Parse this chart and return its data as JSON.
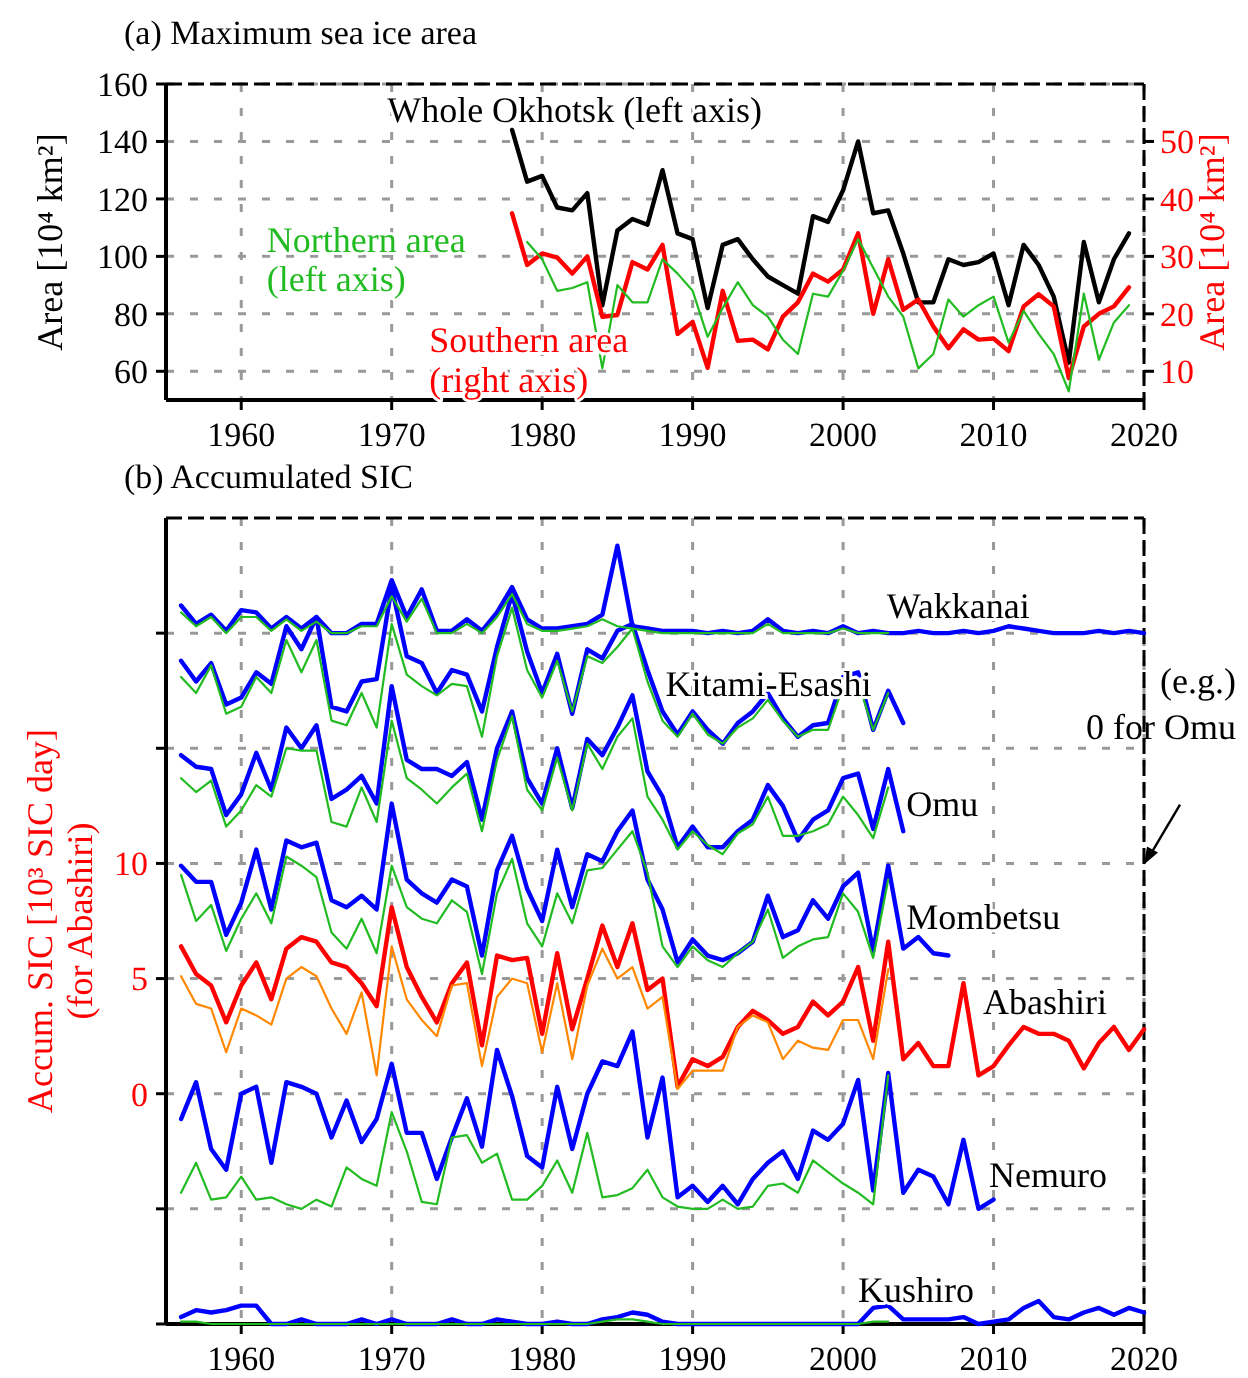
{
  "chart_data": [
    {
      "type": "line",
      "title": "(a) Maximum sea ice area",
      "ylabel": "Area [10⁴ km²]",
      "y2label": "Area [10⁴ km²]",
      "xlim": [
        1955,
        2020
      ],
      "xticks": [
        1960,
        1970,
        1980,
        1990,
        2000,
        2010,
        2020
      ],
      "ylim": [
        50,
        160
      ],
      "yticks": [
        60,
        80,
        100,
        120,
        140,
        160
      ],
      "y2lim": [
        5,
        60
      ],
      "y2ticks": [
        10,
        20,
        30,
        40,
        50
      ],
      "grid": true,
      "x": [
        1978,
        1979,
        1980,
        1981,
        1982,
        1983,
        1984,
        1985,
        1986,
        1987,
        1988,
        1989,
        1990,
        1991,
        1992,
        1993,
        1994,
        1995,
        1996,
        1997,
        1998,
        1999,
        2000,
        2001,
        2002,
        2003,
        2004,
        2005,
        2006,
        2007,
        2008,
        2009,
        2010,
        2011,
        2012,
        2013,
        2014,
        2015,
        2016,
        2017,
        2018,
        2019
      ],
      "series": [
        {
          "name": "Whole Okhotsk (left axis)",
          "color": "#000000",
          "values": [
            144,
            126,
            128,
            117,
            116,
            122,
            83,
            109,
            113,
            111,
            130,
            108,
            106,
            82,
            104,
            106,
            99,
            93,
            90,
            87,
            114,
            112,
            123,
            140,
            115,
            116,
            101,
            84,
            84,
            99,
            97,
            98,
            101,
            83,
            104,
            97,
            86,
            63,
            105,
            84,
            99,
            108
          ]
        },
        {
          "name": "Northern area (left axis)",
          "color": "#22bb22",
          "values": [
            null,
            105,
            99,
            88,
            89,
            91,
            61,
            90,
            84,
            84,
            99,
            94,
            88,
            72,
            82,
            91,
            83,
            79,
            71,
            66,
            87,
            86,
            95,
            106,
            96,
            86,
            79,
            61,
            66,
            85,
            79,
            83,
            86,
            70,
            81,
            73,
            66,
            53,
            87,
            64,
            77,
            83
          ]
        },
        {
          "name": "Southern area (right axis)",
          "color": "#ff0000",
          "axis": "y2",
          "values": [
            37.5,
            28.5,
            30.5,
            29.8,
            27,
            30,
            19.5,
            19.8,
            29,
            27.7,
            32,
            16.5,
            18.6,
            10.6,
            24,
            15.3,
            15.5,
            13.8,
            19.5,
            22,
            27,
            25.6,
            27.7,
            34,
            20,
            29.5,
            20.7,
            22.5,
            17.8,
            14,
            17.3,
            15.5,
            15.7,
            13.5,
            21.3,
            23.4,
            21.3,
            8.8,
            17.8,
            20,
            21.3,
            24.6
          ]
        }
      ]
    },
    {
      "type": "line",
      "title": "(b) Accumulated SIC",
      "ylabel": "Accum. SIC [10³ SIC day] (for Abashiri)",
      "xlim": [
        1955,
        2020
      ],
      "xticks": [
        1960,
        1970,
        1980,
        1990,
        2000,
        2010,
        2020
      ],
      "ylim": [
        -10,
        25
      ],
      "yticks": [
        {
          "value": -10,
          "label": null
        },
        {
          "value": -5,
          "label": null
        },
        0,
        5,
        10,
        {
          "value": 15,
          "label": null
        },
        {
          "value": 20,
          "label": null
        }
      ],
      "grid": true,
      "annotations": [
        "(e.g.) 0 for Omu"
      ],
      "x": [
        1956,
        1957,
        1958,
        1959,
        1960,
        1961,
        1962,
        1963,
        1964,
        1965,
        1966,
        1967,
        1968,
        1969,
        1970,
        1971,
        1972,
        1973,
        1974,
        1975,
        1976,
        1977,
        1978,
        1979,
        1980,
        1981,
        1982,
        1983,
        1984,
        1985,
        1986,
        1987,
        1988,
        1989,
        1990,
        1991,
        1992,
        1993,
        1994,
        1995,
        1996,
        1997,
        1998,
        1999,
        2000,
        2001,
        2002,
        2003,
        2004,
        2005,
        2006,
        2007,
        2008,
        2009,
        2010,
        2011,
        2012,
        2013,
        2014,
        2015,
        2016,
        2017,
        2018,
        2019,
        2020
      ],
      "series": [
        {
          "name": "Wakkanai",
          "color": "#0000ff",
          "values": [
            21.2,
            20.4,
            20.8,
            20.1,
            21.0,
            20.9,
            20.2,
            20.7,
            20.2,
            20.7,
            20.0,
            20.0,
            20.4,
            20.4,
            22.3,
            20.7,
            21.9,
            20.1,
            20.1,
            20.6,
            20.1,
            20.9,
            22.0,
            20.6,
            20.2,
            20.2,
            20.3,
            20.4,
            20.8,
            23.8,
            20.3,
            20.2,
            20.1,
            20.1,
            20.1,
            20.0,
            20.1,
            20.0,
            20.1,
            20.6,
            20.1,
            20.0,
            20.1,
            20.0,
            20.3,
            20.0,
            20.1,
            20.0,
            20.0,
            20.1,
            20.0,
            20.0,
            20.1,
            20.0,
            20.1,
            20.3,
            20.2,
            20.1,
            20.0,
            20.0,
            20.0,
            20.1,
            20.0,
            20.1,
            20.0
          ]
        },
        {
          "color": "#22bb22",
          "values": [
            20.9,
            20.3,
            20.7,
            20.0,
            20.7,
            20.7,
            20.1,
            20.6,
            20.1,
            20.5,
            20.0,
            20.0,
            20.3,
            20.3,
            21.6,
            20.5,
            21.5,
            20.0,
            20.0,
            20.4,
            20.0,
            20.7,
            21.7,
            20.4,
            20.1,
            20.1,
            20.2,
            20.3,
            20.6,
            20.3,
            20.2,
            20.1,
            20.0,
            20.0,
            20.0,
            20.0,
            20.0,
            20.0,
            20.0,
            20.4,
            20.0,
            20.0,
            20.0,
            20.0,
            20.2,
            20.0,
            20.0,
            20.0,
            null,
            null,
            null,
            null,
            null,
            null,
            null,
            null,
            null,
            null,
            null,
            null,
            null,
            null,
            null,
            null,
            null
          ]
        },
        {
          "name": "Kitami-Esashi",
          "color": "#0000ff",
          "values": [
            18.8,
            17.9,
            18.7,
            16.9,
            17.2,
            18.3,
            17.8,
            20.3,
            19.3,
            20.7,
            16.8,
            16.6,
            17.9,
            18.0,
            22.0,
            19.0,
            18.7,
            17.4,
            18.4,
            18.2,
            16.6,
            19.4,
            21.7,
            19.2,
            17.4,
            19.1,
            16.5,
            19.3,
            18.9,
            20.1,
            20.4,
            18.4,
            16.6,
            15.6,
            16.6,
            15.8,
            15.2,
            16.1,
            16.6,
            17.4,
            16.3,
            15.5,
            16.0,
            16.1,
            18.1,
            18.3,
            15.8,
            17.5,
            16.1,
            null,
            null,
            null,
            null,
            null,
            null,
            null,
            null,
            null,
            null,
            null,
            null,
            null,
            null,
            null,
            null
          ]
        },
        {
          "color": "#22bb22",
          "values": [
            18.1,
            17.4,
            18.6,
            16.5,
            16.8,
            18.1,
            17.4,
            19.7,
            18.3,
            19.7,
            16.2,
            16.0,
            17.4,
            15.9,
            20.4,
            18.2,
            17.7,
            17.3,
            17.8,
            17.7,
            15.5,
            19.0,
            21.1,
            18.4,
            17.2,
            18.8,
            16.6,
            19.0,
            18.7,
            19.4,
            20.2,
            17.9,
            16.2,
            15.5,
            16.5,
            15.6,
            15.2,
            15.9,
            16.3,
            17.1,
            16.2,
            15.5,
            15.8,
            15.8,
            17.7,
            17.9,
            15.8,
            17.4,
            null,
            null,
            null,
            null,
            null,
            null,
            null,
            null,
            null,
            null,
            null,
            null,
            null,
            null,
            null,
            null,
            null
          ]
        },
        {
          "name": "Omu",
          "color": "#0000ff",
          "values": [
            14.7,
            14.2,
            14.1,
            12.1,
            13.0,
            14.8,
            13.2,
            15.9,
            15.0,
            16.0,
            12.8,
            13.2,
            13.8,
            12.6,
            17.7,
            14.5,
            14.1,
            14.1,
            13.8,
            14.4,
            11.9,
            15.0,
            16.6,
            13.7,
            12.6,
            15.0,
            12.4,
            15.4,
            14.7,
            15.9,
            17.3,
            14.0,
            12.9,
            10.7,
            11.6,
            10.7,
            10.7,
            11.4,
            11.9,
            13.4,
            12.5,
            11.0,
            11.9,
            12.3,
            13.7,
            13.9,
            11.5,
            14.1,
            11.4,
            null,
            null,
            null,
            null,
            null,
            null,
            null,
            null,
            null,
            null,
            null,
            null,
            null,
            null,
            null,
            null
          ]
        },
        {
          "color": "#22bb22",
          "values": [
            13.7,
            13.1,
            13.6,
            11.6,
            12.3,
            13.4,
            12.9,
            15.0,
            14.9,
            14.9,
            11.8,
            11.6,
            13.3,
            11.8,
            16.2,
            13.7,
            13.2,
            12.6,
            13.3,
            13.9,
            11.4,
            14.5,
            16.4,
            13.2,
            12.3,
            14.6,
            12.3,
            15.2,
            14.1,
            15.5,
            16.3,
            12.9,
            11.9,
            10.6,
            11.4,
            10.8,
            10.4,
            11.3,
            11.7,
            12.9,
            11.2,
            11.2,
            11.4,
            11.7,
            12.9,
            12.1,
            11.1,
            13.3,
            null,
            null,
            null,
            null,
            null,
            null,
            null,
            null,
            null,
            null,
            null,
            null,
            null,
            null,
            null,
            null,
            null
          ]
        },
        {
          "name": "Mombetsu",
          "color": "#0000ff",
          "values": [
            9.9,
            9.2,
            9.2,
            6.9,
            8.3,
            10.6,
            8.0,
            11.0,
            10.7,
            10.9,
            8.4,
            8.1,
            8.6,
            8.0,
            12.6,
            9.3,
            8.7,
            8.3,
            9.3,
            9.0,
            6.0,
            9.7,
            11.2,
            8.9,
            7.5,
            10.6,
            8.1,
            10.4,
            10.1,
            11.4,
            12.3,
            9.3,
            8.0,
            5.7,
            6.7,
            6.0,
            5.8,
            6.1,
            6.6,
            8.6,
            6.8,
            7.1,
            8.4,
            7.6,
            9.0,
            9.6,
            6.2,
            9.9,
            6.3,
            6.8,
            6.1,
            6.0,
            null,
            null,
            null,
            null,
            null,
            null,
            null,
            null,
            null,
            null,
            null,
            null,
            null
          ]
        },
        {
          "color": "#22bb22",
          "values": [
            9.5,
            7.5,
            8.2,
            6.2,
            7.6,
            8.7,
            7.4,
            10.3,
            9.9,
            9.4,
            7.0,
            6.3,
            7.6,
            6.1,
            9.9,
            8.1,
            7.6,
            7.4,
            8.4,
            7.9,
            5.2,
            8.7,
            10.2,
            7.4,
            6.4,
            8.7,
            7.4,
            9.7,
            9.8,
            10.6,
            11.4,
            9.6,
            6.4,
            5.5,
            6.4,
            5.8,
            5.5,
            6.1,
            6.6,
            8.0,
            5.9,
            6.4,
            6.7,
            6.8,
            8.7,
            7.9,
            5.9,
            9.3,
            null,
            null,
            null,
            null,
            null,
            null,
            null,
            null,
            null,
            null,
            null,
            null,
            null,
            null,
            null,
            null,
            null
          ]
        },
        {
          "name": "Abashiri",
          "color": "#ff0000",
          "values": [
            6.4,
            5.2,
            4.7,
            3.1,
            4.7,
            5.7,
            4.1,
            6.3,
            6.8,
            6.6,
            5.7,
            5.5,
            4.8,
            3.8,
            8.1,
            5.5,
            4.2,
            3.1,
            4.8,
            5.7,
            2.1,
            6.0,
            5.8,
            5.9,
            2.6,
            6.1,
            2.8,
            5.0,
            7.3,
            5.5,
            7.4,
            4.5,
            5.0,
            0.3,
            1.5,
            1.2,
            1.6,
            2.9,
            3.6,
            3.2,
            2.6,
            2.9,
            4.0,
            3.4,
            4.0,
            5.5,
            2.3,
            6.6,
            1.5,
            2.2,
            1.2,
            1.2,
            4.8,
            0.8,
            1.2,
            2.1,
            2.9,
            2.6,
            2.6,
            2.3,
            1.1,
            2.2,
            2.9,
            1.9,
            2.8
          ]
        },
        {
          "color": "#ff8800",
          "values": [
            5.1,
            3.9,
            3.7,
            1.8,
            3.7,
            3.4,
            3.0,
            5.0,
            5.5,
            5.1,
            3.7,
            2.6,
            4.4,
            0.8,
            6.4,
            4.1,
            3.2,
            2.5,
            4.7,
            4.8,
            1.2,
            4.2,
            5.0,
            4.8,
            1.8,
            4.8,
            1.5,
            4.7,
            6.3,
            5.0,
            5.5,
            3.7,
            4.2,
            0.2,
            1.0,
            1.0,
            1.0,
            2.9,
            3.4,
            3.1,
            1.5,
            2.3,
            2.0,
            1.9,
            3.2,
            3.2,
            1.5,
            5.4,
            null,
            null,
            null,
            null,
            null,
            null,
            null,
            null,
            null,
            null,
            null,
            null,
            null,
            null,
            null,
            null,
            null
          ]
        },
        {
          "name": "Nemuro",
          "color": "#0000ff",
          "values": [
            -1.1,
            0.5,
            -2.4,
            -3.3,
            0.0,
            0.3,
            -3.0,
            0.5,
            0.3,
            0.0,
            -1.9,
            -0.3,
            -2.1,
            -1.1,
            1.3,
            -1.7,
            -1.7,
            -3.7,
            -1.9,
            -0.2,
            -2.3,
            1.9,
            -0.1,
            -2.7,
            -3.2,
            0.3,
            -2.4,
            0.0,
            1.4,
            1.2,
            2.7,
            -1.9,
            0.7,
            -4.5,
            -4.0,
            -4.7,
            -4.0,
            -4.8,
            -3.7,
            -3.0,
            -2.5,
            -3.7,
            -1.6,
            -2.0,
            -1.3,
            0.6,
            -4.2,
            0.9,
            -4.3,
            -3.3,
            -3.6,
            -4.8,
            -2.0,
            -5.0,
            -4.6,
            null,
            null,
            null,
            null,
            null,
            null,
            null,
            null,
            null,
            null
          ]
        },
        {
          "color": "#22bb22",
          "values": [
            -4.3,
            -3.0,
            -4.6,
            -4.5,
            -3.6,
            -4.6,
            -4.5,
            -4.8,
            -5.0,
            -4.6,
            -4.9,
            -3.2,
            -3.7,
            -4.0,
            -0.8,
            -2.5,
            -4.7,
            -4.8,
            -1.9,
            -1.8,
            -3.0,
            -2.6,
            -4.6,
            -4.6,
            -4.0,
            -2.9,
            -4.3,
            -1.7,
            -4.5,
            -4.4,
            -4.1,
            -3.3,
            -4.5,
            -4.9,
            -5.0,
            -5.0,
            -4.6,
            -5.0,
            -4.9,
            -4.0,
            -3.9,
            -4.3,
            -2.9,
            -3.4,
            -3.9,
            -4.3,
            -4.8,
            0.8,
            null,
            null,
            null,
            null,
            null,
            null,
            null,
            null,
            null,
            null,
            null,
            null,
            null,
            null,
            null,
            null,
            null
          ]
        },
        {
          "name": "Kushiro",
          "color": "#0000ff",
          "values": [
            -9.7,
            -9.4,
            -9.5,
            -9.4,
            -9.2,
            -9.2,
            -10.0,
            -10.0,
            -9.8,
            -10.0,
            -10.0,
            -10.0,
            -9.8,
            -10.0,
            -9.8,
            -10.0,
            -10.0,
            -10.0,
            -9.8,
            -10.0,
            -10.0,
            -9.8,
            -9.9,
            -10.0,
            -10.0,
            -9.9,
            -10.0,
            -10.0,
            -9.8,
            -9.7,
            -9.5,
            -9.6,
            -9.9,
            -10.0,
            -10.0,
            -10.0,
            -10.0,
            -10.0,
            -10.0,
            -10.0,
            -10.0,
            -10.0,
            -10.0,
            -10.0,
            -10.0,
            -10.0,
            -9.3,
            -9.2,
            -9.8,
            -9.8,
            -9.8,
            -9.8,
            -9.7,
            -10.0,
            -9.9,
            -9.8,
            -9.3,
            -9.0,
            -9.7,
            -9.8,
            -9.5,
            -9.3,
            -9.6,
            -9.3,
            -9.5
          ]
        },
        {
          "color": "#22bb22",
          "values": [
            -9.9,
            -9.9,
            -10.0,
            -10.0,
            -10.0,
            -10.0,
            -10.0,
            -10.0,
            -10.0,
            -10.0,
            -10.0,
            -10.0,
            -10.0,
            -10.0,
            -10.0,
            -10.0,
            -10.0,
            -10.0,
            -10.0,
            -10.0,
            -10.0,
            -10.0,
            -10.0,
            -10.0,
            -10.0,
            -10.0,
            -10.0,
            -10.0,
            -9.9,
            -9.8,
            -9.8,
            -9.9,
            -10.0,
            -10.0,
            -10.0,
            -10.0,
            -10.0,
            -10.0,
            -10.0,
            -10.0,
            -10.0,
            -10.0,
            -10.0,
            -10.0,
            -10.0,
            -10.0,
            -9.9,
            -9.9,
            null,
            null,
            null,
            null,
            null,
            null,
            null,
            null,
            null,
            null,
            null,
            null,
            null,
            null,
            null,
            null,
            null
          ]
        }
      ]
    }
  ]
}
